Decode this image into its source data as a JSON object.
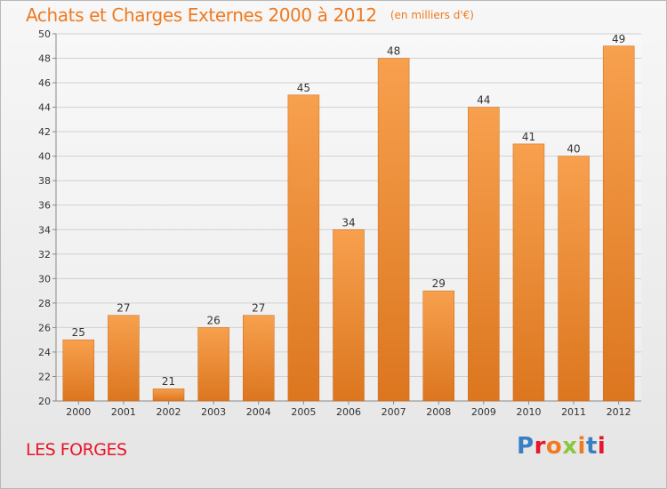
{
  "header": {
    "title": "Achats et Charges Externes 2000 à 2012",
    "unit": "(en milliers d'€)"
  },
  "footer": {
    "place": "LES FORGES",
    "logo": "Proxiti"
  },
  "colors": {
    "title": "#f07a20",
    "place": "#e8162a",
    "bar_light": "#f7a04e",
    "bar_dark": "#dc761f",
    "logo_letters": [
      "#3a7fc4",
      "#e8162a",
      "#f07a20",
      "#8cc63e",
      "#f07a20",
      "#3a7fc4",
      "#e8162a"
    ]
  },
  "chart_data": {
    "type": "bar",
    "categories": [
      "2000",
      "2001",
      "2002",
      "2003",
      "2004",
      "2005",
      "2006",
      "2007",
      "2008",
      "2009",
      "2010",
      "2011",
      "2012"
    ],
    "values": [
      25,
      27,
      21,
      26,
      27,
      45,
      34,
      48,
      29,
      44,
      41,
      40,
      49
    ],
    "data_labels": [
      "25",
      "27",
      "21",
      "26",
      "27",
      "45",
      "34",
      "48",
      "29",
      "44",
      "41",
      "40",
      "49"
    ],
    "title": "Achats et Charges Externes 2000 à 2012",
    "unit": "(en milliers d'€)",
    "xlabel": "",
    "ylabel": "",
    "ylim": [
      20,
      50
    ],
    "yticks": [
      20,
      22,
      24,
      26,
      28,
      30,
      32,
      34,
      36,
      38,
      40,
      42,
      44,
      46,
      48,
      50
    ],
    "grid": true,
    "legend": "none"
  }
}
